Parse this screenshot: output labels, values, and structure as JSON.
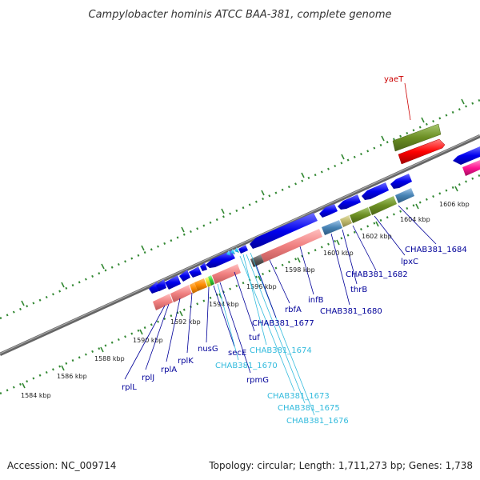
{
  "title": "Campylobacter hominis ATCC BAA-381, complete genome",
  "footer": {
    "accession": "Accession: NC_009714",
    "summary": "Topology: circular; Length: 1,711,273 bp; Genes: 1,738"
  },
  "scale_labels": [
    "1584 kbp",
    "1586 kbp",
    "1588 kbp",
    "1590 kbp",
    "1592 kbp",
    "1594 kbp",
    "1596 kbp",
    "1598 kbp",
    "1600 kbp",
    "1602 kbp",
    "1604 kbp",
    "1606 kbp"
  ],
  "gene_labels": {
    "yaeT": "yaeT",
    "rplL": "rplL",
    "rplJ": "rplJ",
    "rplA": "rplA",
    "rplK": "rplK",
    "nusG": "nusG",
    "secE": "secE",
    "CHAB381_1670": "CHAB381_1670",
    "rpmG": "rpmG",
    "tuf": "tuf",
    "CHAB381_1674": "CHAB381_1674",
    "CHAB381_1673": "CHAB381_1673",
    "CHAB381_1675": "CHAB381_1675",
    "CHAB381_1676": "CHAB381_1676",
    "CHAB381_1677": "CHAB381_1677",
    "rbfA": "rbfA",
    "infB": "infB",
    "CHAB381_1680": "CHAB381_1680",
    "thrB": "thrB",
    "CHAB381_1682": "CHAB381_1682",
    "lpxC": "lpxC",
    "CHAB381_1684": "CHAB381_1684"
  },
  "colors": {
    "cds": "#0000ee",
    "trna": "#33ccff",
    "label_blue": "#000099",
    "label_cyan": "#33bbdd",
    "label_red": "#cc0000",
    "backbone": "#888888",
    "tick": "#338833",
    "salmon": "#f08080",
    "olive": "#6b8e23",
    "steel": "#4682b4",
    "red": "#ff0000",
    "magenta": "#ff1493",
    "orange": "#ff8c00",
    "khaki": "#bdb76b"
  }
}
